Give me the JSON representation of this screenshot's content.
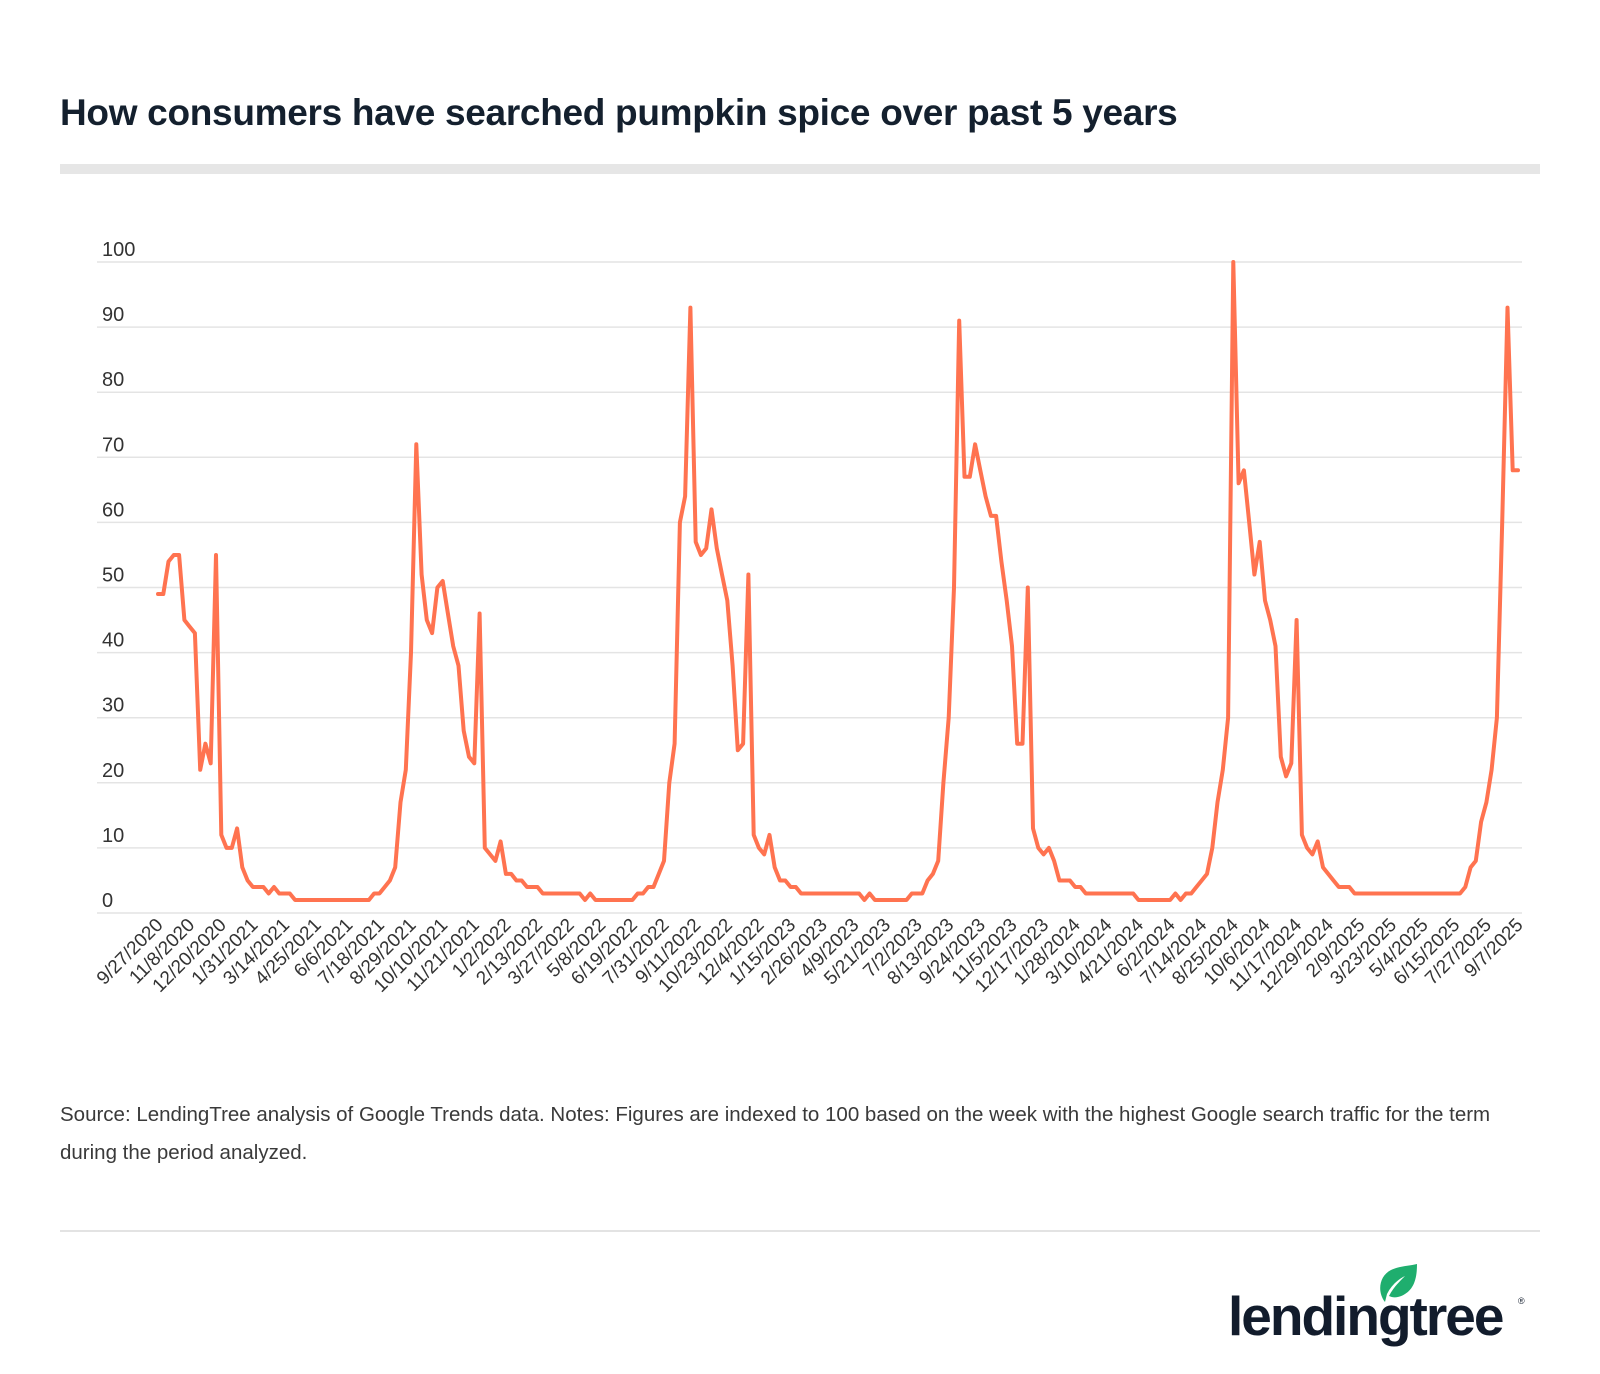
{
  "title": "How consumers have searched pumpkin spice over past 5 years",
  "footnote": "Source: LendingTree analysis of Google Trends data. Notes: Figures are indexed to 100 based on the week with the highest Google search traffic for the term during the period analyzed.",
  "logo": {
    "text": "lendingtree",
    "brand_color": "#121c2c",
    "leaf_color": "#1fae6e"
  },
  "chart_data": {
    "type": "line",
    "title": "How consumers have searched pumpkin spice over past 5 years",
    "xlabel": "",
    "ylabel": "",
    "frequency": "weekly",
    "line_color": "#ff7350",
    "grid": true,
    "ylim": [
      0,
      100
    ],
    "y_ticks": [
      0,
      10,
      20,
      30,
      40,
      50,
      60,
      70,
      80,
      90,
      100
    ],
    "x_tick_labels": [
      "9/27/2020",
      "11/8/2020",
      "12/20/2020",
      "1/31/2021",
      "3/14/2021",
      "4/25/2021",
      "6/6/2021",
      "7/18/2021",
      "8/29/2021",
      "10/10/2021",
      "11/21/2021",
      "1/2/2022",
      "2/13/2022",
      "3/27/2022",
      "5/8/2022",
      "6/19/2022",
      "7/31/2022",
      "9/11/2022",
      "10/23/2022",
      "12/4/2022",
      "1/15/2023",
      "2/26/2023",
      "4/9/2023",
      "5/21/2023",
      "7/2/2023",
      "8/13/2023",
      "9/24/2023",
      "11/5/2023",
      "12/17/2023",
      "1/28/2024",
      "3/10/2024",
      "4/21/2024",
      "6/2/2024",
      "7/14/2024",
      "8/25/2024",
      "10/6/2024",
      "11/17/2024",
      "12/29/2024",
      "2/9/2025",
      "3/23/2025",
      "5/4/2025",
      "6/15/2025",
      "7/27/2025",
      "9/7/2025"
    ],
    "values": [
      49,
      49,
      54,
      55,
      55,
      45,
      44,
      43,
      22,
      26,
      23,
      55,
      12,
      10,
      10,
      13,
      7,
      5,
      4,
      4,
      4,
      3,
      4,
      3,
      3,
      3,
      2,
      2,
      2,
      2,
      2,
      2,
      2,
      2,
      2,
      2,
      2,
      2,
      2,
      2,
      2,
      3,
      3,
      4,
      5,
      7,
      17,
      22,
      40,
      72,
      52,
      45,
      43,
      50,
      51,
      46,
      41,
      38,
      28,
      24,
      23,
      46,
      10,
      9,
      8,
      11,
      6,
      6,
      5,
      5,
      4,
      4,
      4,
      3,
      3,
      3,
      3,
      3,
      3,
      3,
      3,
      2,
      3,
      2,
      2,
      2,
      2,
      2,
      2,
      2,
      2,
      3,
      3,
      4,
      4,
      6,
      8,
      20,
      26,
      60,
      64,
      93,
      57,
      55,
      56,
      62,
      56,
      52,
      48,
      38,
      25,
      26,
      52,
      12,
      10,
      9,
      12,
      7,
      5,
      5,
      4,
      4,
      3,
      3,
      3,
      3,
      3,
      3,
      3,
      3,
      3,
      3,
      3,
      3,
      2,
      3,
      2,
      2,
      2,
      2,
      2,
      2,
      2,
      3,
      3,
      3,
      5,
      6,
      8,
      20,
      30,
      50,
      91,
      67,
      67,
      72,
      68,
      64,
      61,
      61,
      54,
      48,
      41,
      26,
      26,
      50,
      13,
      10,
      9,
      10,
      8,
      5,
      5,
      5,
      4,
      4,
      3,
      3,
      3,
      3,
      3,
      3,
      3,
      3,
      3,
      3,
      2,
      2,
      2,
      2,
      2,
      2,
      2,
      3,
      2,
      3,
      3,
      4,
      5,
      6,
      10,
      17,
      22,
      30,
      100,
      66,
      68,
      60,
      52,
      57,
      48,
      45,
      41,
      24,
      21,
      23,
      45,
      12,
      10,
      9,
      11,
      7,
      6,
      5,
      4,
      4,
      4,
      3,
      3,
      3,
      3,
      3,
      3,
      3,
      3,
      3,
      3,
      3,
      3,
      3,
      3,
      3,
      3,
      3,
      3,
      3,
      3,
      3,
      4,
      7,
      8,
      14,
      17,
      22,
      30,
      60,
      93,
      68,
      68
    ]
  }
}
